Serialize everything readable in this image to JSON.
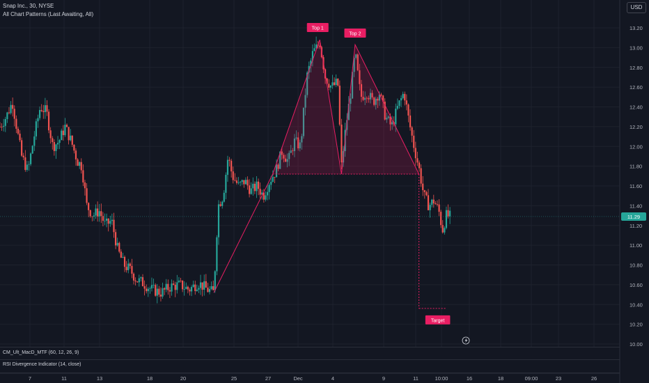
{
  "header": {
    "symbol_line": "Snap Inc., 30, NYSE",
    "indicator_line": "All Chart Patterns (Last Awaiting, All)"
  },
  "currency_button": "USD",
  "panes": {
    "macd_label": "CM_Ult_MacD_MTF (60, 12, 26, 9)",
    "rsi_label": "RSI Divergence Indicator (14, close)"
  },
  "chart_data": {
    "type": "candlestick",
    "y_ticks": [
      "13.20",
      "13.00",
      "12.80",
      "12.60",
      "12.40",
      "12.20",
      "12.00",
      "11.80",
      "11.60",
      "11.40",
      "11.20",
      "11.00",
      "10.80",
      "10.60",
      "10.40",
      "10.20",
      "10.00"
    ],
    "x_ticks": [
      "7",
      "11",
      "13",
      "18",
      "20",
      "25",
      "27",
      "Dec",
      "4",
      "9",
      "11",
      "10:00",
      "16",
      "18",
      "09:00",
      "23",
      "26"
    ],
    "last_price": "11.29",
    "last_price_value": 11.29,
    "neckline": 11.72,
    "pattern_points": [
      {
        "t": 0.345,
        "p": 10.52
      },
      {
        "t": 0.44,
        "p": 11.72
      },
      {
        "t": 0.516,
        "p": 13.08
      },
      {
        "t": 0.551,
        "p": 11.72
      },
      {
        "t": 0.573,
        "p": 13.03
      },
      {
        "t": 0.676,
        "p": 11.72
      }
    ],
    "target_price": 10.36,
    "annotations": {
      "top1": "Top 1",
      "top2": "Top 2",
      "target": "Target"
    },
    "colors": {
      "up": "#26a69a",
      "down": "#ef5350",
      "pattern": "#e91e63",
      "last_price": "#26a69a"
    },
    "price_path": [
      {
        "t": 0.0,
        "p": 12.2
      },
      {
        "t": 0.01,
        "p": 12.3
      },
      {
        "t": 0.02,
        "p": 12.45
      },
      {
        "t": 0.028,
        "p": 12.15
      },
      {
        "t": 0.035,
        "p": 11.9
      },
      {
        "t": 0.045,
        "p": 11.75
      },
      {
        "t": 0.055,
        "p": 12.1
      },
      {
        "t": 0.065,
        "p": 12.4
      },
      {
        "t": 0.075,
        "p": 12.35
      },
      {
        "t": 0.085,
        "p": 12.0
      },
      {
        "t": 0.095,
        "p": 12.05
      },
      {
        "t": 0.105,
        "p": 12.2
      },
      {
        "t": 0.115,
        "p": 12.05
      },
      {
        "t": 0.125,
        "p": 11.85
      },
      {
        "t": 0.132,
        "p": 11.8
      },
      {
        "t": 0.14,
        "p": 11.4
      },
      {
        "t": 0.15,
        "p": 11.3
      },
      {
        "t": 0.16,
        "p": 11.35
      },
      {
        "t": 0.17,
        "p": 11.2
      },
      {
        "t": 0.18,
        "p": 11.25
      },
      {
        "t": 0.19,
        "p": 10.95
      },
      {
        "t": 0.2,
        "p": 10.8
      },
      {
        "t": 0.21,
        "p": 10.75
      },
      {
        "t": 0.22,
        "p": 10.65
      },
      {
        "t": 0.23,
        "p": 10.62
      },
      {
        "t": 0.245,
        "p": 10.55
      },
      {
        "t": 0.26,
        "p": 10.52
      },
      {
        "t": 0.275,
        "p": 10.58
      },
      {
        "t": 0.29,
        "p": 10.6
      },
      {
        "t": 0.305,
        "p": 10.55
      },
      {
        "t": 0.32,
        "p": 10.62
      },
      {
        "t": 0.335,
        "p": 10.55
      },
      {
        "t": 0.345,
        "p": 10.52
      },
      {
        "t": 0.352,
        "p": 11.4
      },
      {
        "t": 0.36,
        "p": 11.5
      },
      {
        "t": 0.368,
        "p": 11.9
      },
      {
        "t": 0.375,
        "p": 11.7
      },
      {
        "t": 0.385,
        "p": 11.6
      },
      {
        "t": 0.395,
        "p": 11.65
      },
      {
        "t": 0.405,
        "p": 11.55
      },
      {
        "t": 0.415,
        "p": 11.6
      },
      {
        "t": 0.425,
        "p": 11.5
      },
      {
        "t": 0.435,
        "p": 11.65
      },
      {
        "t": 0.445,
        "p": 11.75
      },
      {
        "t": 0.455,
        "p": 11.95
      },
      {
        "t": 0.465,
        "p": 11.85
      },
      {
        "t": 0.475,
        "p": 12.05
      },
      {
        "t": 0.485,
        "p": 12.0
      },
      {
        "t": 0.495,
        "p": 12.7
      },
      {
        "t": 0.505,
        "p": 12.95
      },
      {
        "t": 0.516,
        "p": 13.05
      },
      {
        "t": 0.525,
        "p": 12.7
      },
      {
        "t": 0.535,
        "p": 12.6
      },
      {
        "t": 0.545,
        "p": 12.65
      },
      {
        "t": 0.551,
        "p": 11.8
      },
      {
        "t": 0.558,
        "p": 12.2
      },
      {
        "t": 0.566,
        "p": 12.55
      },
      {
        "t": 0.573,
        "p": 12.95
      },
      {
        "t": 0.582,
        "p": 12.5
      },
      {
        "t": 0.592,
        "p": 12.55
      },
      {
        "t": 0.602,
        "p": 12.45
      },
      {
        "t": 0.612,
        "p": 12.55
      },
      {
        "t": 0.622,
        "p": 12.3
      },
      {
        "t": 0.632,
        "p": 12.2
      },
      {
        "t": 0.642,
        "p": 12.4
      },
      {
        "t": 0.652,
        "p": 12.55
      },
      {
        "t": 0.66,
        "p": 12.25
      },
      {
        "t": 0.668,
        "p": 12.0
      },
      {
        "t": 0.676,
        "p": 11.78
      },
      {
        "t": 0.684,
        "p": 11.5
      },
      {
        "t": 0.692,
        "p": 11.4
      },
      {
        "t": 0.7,
        "p": 11.45
      },
      {
        "t": 0.708,
        "p": 11.35
      },
      {
        "t": 0.714,
        "p": 11.15
      },
      {
        "t": 0.72,
        "p": 11.3
      },
      {
        "t": 0.726,
        "p": 11.29
      }
    ]
  }
}
